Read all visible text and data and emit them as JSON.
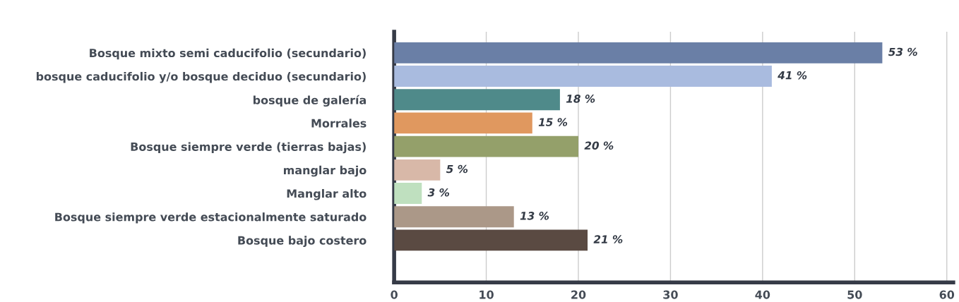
{
  "chart_data": {
    "type": "bar",
    "orientation": "horizontal",
    "categories": [
      "Bosque mixto semi caducifolio (secundario)",
      "bosque caducifolio y/o bosque deciduo (secundario)",
      "bosque de galería",
      "Morrales",
      "Bosque siempre verde (tierras bajas)",
      "manglar bajo",
      "Manglar alto",
      "Bosque siempre verde estacionalmente saturado",
      "Bosque bajo costero"
    ],
    "values": [
      53,
      41,
      18,
      15,
      20,
      5,
      3,
      13,
      21
    ],
    "colors": [
      "#6a7fa6",
      "#a9bbdf",
      "#4f8a8a",
      "#e0985f",
      "#94a06a",
      "#d8b8a8",
      "#bfe0bf",
      "#ab9888",
      "#5a4a42"
    ],
    "value_labels": [
      "53 %",
      "41 %",
      "18 %",
      "15 %",
      "20 %",
      "5 %",
      "3 %",
      "13 %",
      "21 %"
    ],
    "xlim": [
      0,
      60.7
    ],
    "xticks": [
      0,
      10,
      20,
      30,
      40,
      50,
      60
    ],
    "grid": "x",
    "legend": false
  }
}
